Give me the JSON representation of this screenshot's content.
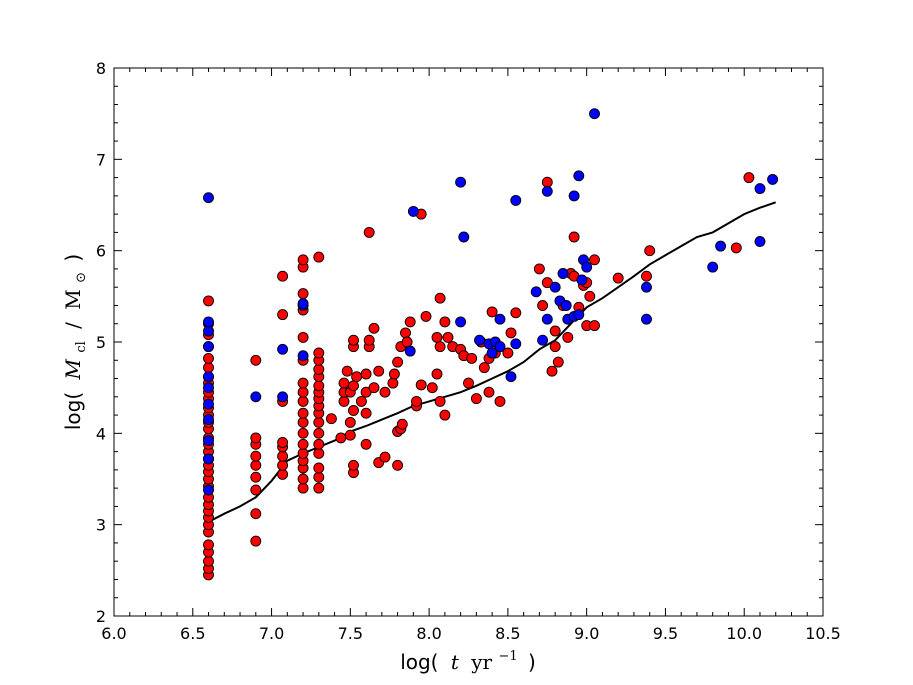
{
  "chart_data": {
    "type": "scatter",
    "title": "",
    "xlabel": {
      "prefix": "log(",
      "var": "t",
      "unit": "yr",
      "exp": "−1",
      "suffix": ")"
    },
    "ylabel": {
      "prefix": "log(",
      "var": "M",
      "sub": "cl",
      "sep": "/",
      "unit": "M",
      "unit_sub": "⊙",
      "suffix": ")"
    },
    "xlim": [
      6.0,
      10.5
    ],
    "ylim": [
      2,
      8
    ],
    "x_ticks": [
      "6.0",
      "6.5",
      "7.0",
      "7.5",
      "8.0",
      "8.5",
      "9.0",
      "9.5",
      "10.0",
      "10.5"
    ],
    "y_ticks": [
      "2",
      "3",
      "4",
      "5",
      "6",
      "7",
      "8"
    ],
    "grid": false,
    "colors": {
      "red": "#ff0000",
      "blue": "#0000ff",
      "line": "#000000"
    },
    "series": [
      {
        "color": "red",
        "points": [
          [
            6.6,
            2.45
          ],
          [
            6.6,
            2.52
          ],
          [
            6.6,
            2.6
          ],
          [
            6.6,
            2.7
          ],
          [
            6.6,
            2.78
          ],
          [
            6.6,
            2.92
          ],
          [
            6.6,
            3.0
          ],
          [
            6.6,
            3.08
          ],
          [
            6.6,
            3.15
          ],
          [
            6.6,
            3.22
          ],
          [
            6.6,
            3.3
          ],
          [
            6.6,
            3.42
          ],
          [
            6.6,
            3.5
          ],
          [
            6.6,
            3.58
          ],
          [
            6.6,
            3.65
          ],
          [
            6.6,
            3.72
          ],
          [
            6.6,
            3.8
          ],
          [
            6.6,
            3.88
          ],
          [
            6.6,
            3.95
          ],
          [
            6.6,
            4.05
          ],
          [
            6.6,
            4.12
          ],
          [
            6.6,
            4.2
          ],
          [
            6.6,
            4.28
          ],
          [
            6.6,
            4.38
          ],
          [
            6.6,
            4.45
          ],
          [
            6.6,
            4.55
          ],
          [
            6.6,
            4.62
          ],
          [
            6.6,
            4.72
          ],
          [
            6.6,
            4.82
          ],
          [
            6.6,
            4.95
          ],
          [
            6.6,
            5.08
          ],
          [
            6.6,
            5.2
          ],
          [
            6.6,
            5.45
          ],
          [
            6.9,
            2.82
          ],
          [
            6.9,
            3.12
          ],
          [
            6.9,
            3.38
          ],
          [
            6.9,
            3.52
          ],
          [
            6.9,
            3.65
          ],
          [
            6.9,
            3.75
          ],
          [
            6.9,
            3.88
          ],
          [
            6.9,
            3.95
          ],
          [
            6.9,
            4.8
          ],
          [
            7.07,
            3.55
          ],
          [
            7.07,
            3.65
          ],
          [
            7.07,
            3.75
          ],
          [
            7.07,
            3.85
          ],
          [
            7.07,
            3.9
          ],
          [
            7.07,
            4.35
          ],
          [
            7.07,
            5.3
          ],
          [
            7.07,
            5.72
          ],
          [
            7.2,
            3.4
          ],
          [
            7.2,
            3.5
          ],
          [
            7.2,
            3.62
          ],
          [
            7.2,
            3.7
          ],
          [
            7.2,
            3.78
          ],
          [
            7.2,
            3.88
          ],
          [
            7.2,
            4.0
          ],
          [
            7.2,
            4.12
          ],
          [
            7.2,
            4.22
          ],
          [
            7.2,
            4.35
          ],
          [
            7.2,
            4.45
          ],
          [
            7.2,
            4.55
          ],
          [
            7.2,
            4.8
          ],
          [
            7.2,
            5.05
          ],
          [
            7.2,
            5.35
          ],
          [
            7.2,
            5.53
          ],
          [
            7.2,
            5.82
          ],
          [
            7.2,
            5.9
          ],
          [
            7.3,
            3.4
          ],
          [
            7.3,
            3.52
          ],
          [
            7.3,
            3.62
          ],
          [
            7.3,
            3.78
          ],
          [
            7.3,
            3.88
          ],
          [
            7.3,
            4.0
          ],
          [
            7.3,
            4.12
          ],
          [
            7.3,
            4.22
          ],
          [
            7.3,
            4.3
          ],
          [
            7.3,
            4.38
          ],
          [
            7.3,
            4.45
          ],
          [
            7.3,
            4.52
          ],
          [
            7.3,
            4.62
          ],
          [
            7.3,
            4.7
          ],
          [
            7.3,
            4.8
          ],
          [
            7.3,
            4.88
          ],
          [
            7.3,
            5.93
          ],
          [
            7.38,
            4.16
          ],
          [
            7.44,
            3.95
          ],
          [
            7.46,
            4.35
          ],
          [
            7.46,
            4.45
          ],
          [
            7.46,
            4.55
          ],
          [
            7.48,
            4.68
          ],
          [
            7.52,
            3.57
          ],
          [
            7.52,
            3.65
          ],
          [
            7.5,
            3.98
          ],
          [
            7.5,
            4.12
          ],
          [
            7.52,
            4.25
          ],
          [
            7.5,
            4.45
          ],
          [
            7.52,
            4.52
          ],
          [
            7.54,
            4.62
          ],
          [
            7.52,
            4.95
          ],
          [
            7.52,
            5.02
          ],
          [
            7.57,
            4.35
          ],
          [
            7.6,
            4.22
          ],
          [
            7.6,
            4.45
          ],
          [
            7.6,
            4.65
          ],
          [
            7.62,
            4.95
          ],
          [
            7.62,
            5.02
          ],
          [
            7.62,
            6.2
          ],
          [
            7.6,
            3.88
          ],
          [
            7.65,
            4.5
          ],
          [
            7.65,
            5.15
          ],
          [
            7.68,
            4.68
          ],
          [
            7.68,
            3.68
          ],
          [
            7.72,
            3.74
          ],
          [
            7.72,
            4.45
          ],
          [
            7.77,
            4.55
          ],
          [
            7.78,
            4.65
          ],
          [
            7.8,
            4.02
          ],
          [
            7.8,
            3.65
          ],
          [
            7.82,
            4.05
          ],
          [
            7.83,
            4.1
          ],
          [
            7.8,
            4.78
          ],
          [
            7.82,
            4.95
          ],
          [
            7.85,
            5.1
          ],
          [
            7.86,
            5.0
          ],
          [
            7.88,
            5.22
          ],
          [
            7.92,
            4.3
          ],
          [
            7.92,
            4.35
          ],
          [
            7.95,
            6.4
          ],
          [
            7.95,
            4.53
          ],
          [
            7.98,
            5.28
          ],
          [
            8.02,
            4.5
          ],
          [
            8.05,
            4.65
          ],
          [
            8.05,
            5.05
          ],
          [
            8.07,
            4.95
          ],
          [
            8.07,
            5.48
          ],
          [
            8.07,
            4.35
          ],
          [
            8.1,
            4.2
          ],
          [
            8.1,
            5.22
          ],
          [
            8.12,
            5.05
          ],
          [
            8.15,
            4.95
          ],
          [
            8.2,
            4.92
          ],
          [
            8.22,
            4.85
          ],
          [
            8.25,
            4.55
          ],
          [
            8.27,
            4.82
          ],
          [
            8.3,
            4.38
          ],
          [
            8.33,
            5.0
          ],
          [
            8.35,
            4.72
          ],
          [
            8.38,
            4.45
          ],
          [
            8.38,
            4.82
          ],
          [
            8.4,
            5.33
          ],
          [
            8.42,
            4.88
          ],
          [
            8.45,
            4.35
          ],
          [
            8.5,
            4.88
          ],
          [
            8.52,
            5.1
          ],
          [
            8.55,
            5.32
          ],
          [
            8.7,
            5.8
          ],
          [
            8.72,
            5.4
          ],
          [
            8.75,
            6.75
          ],
          [
            8.75,
            5.65
          ],
          [
            8.78,
            4.68
          ],
          [
            8.8,
            4.95
          ],
          [
            8.8,
            5.12
          ],
          [
            8.82,
            4.78
          ],
          [
            8.85,
            5.4
          ],
          [
            8.88,
            5.05
          ],
          [
            8.9,
            5.75
          ],
          [
            8.92,
            6.15
          ],
          [
            8.92,
            5.72
          ],
          [
            8.95,
            5.38
          ],
          [
            8.98,
            5.62
          ],
          [
            9.0,
            5.65
          ],
          [
            9.0,
            5.18
          ],
          [
            9.02,
            5.5
          ],
          [
            9.05,
            5.9
          ],
          [
            9.05,
            5.18
          ],
          [
            9.2,
            5.7
          ],
          [
            9.38,
            5.72
          ],
          [
            9.4,
            6.0
          ],
          [
            9.95,
            6.03
          ],
          [
            10.03,
            6.8
          ]
        ]
      },
      {
        "color": "blue",
        "points": [
          [
            6.6,
            3.38
          ],
          [
            6.6,
            3.72
          ],
          [
            6.6,
            3.92
          ],
          [
            6.6,
            4.15
          ],
          [
            6.6,
            4.32
          ],
          [
            6.6,
            4.5
          ],
          [
            6.6,
            4.62
          ],
          [
            6.6,
            4.95
          ],
          [
            6.6,
            5.12
          ],
          [
            6.6,
            5.22
          ],
          [
            6.6,
            6.58
          ],
          [
            6.9,
            4.4
          ],
          [
            7.07,
            4.92
          ],
          [
            7.07,
            4.4
          ],
          [
            7.2,
            4.85
          ],
          [
            7.2,
            5.4
          ],
          [
            7.2,
            5.42
          ],
          [
            7.88,
            4.9
          ],
          [
            7.9,
            6.43
          ],
          [
            8.2,
            6.75
          ],
          [
            8.22,
            6.15
          ],
          [
            8.2,
            5.22
          ],
          [
            8.32,
            5.02
          ],
          [
            8.38,
            4.98
          ],
          [
            8.4,
            4.88
          ],
          [
            8.42,
            5.0
          ],
          [
            8.45,
            4.95
          ],
          [
            8.45,
            5.25
          ],
          [
            8.52,
            4.62
          ],
          [
            8.55,
            4.98
          ],
          [
            8.55,
            6.55
          ],
          [
            8.68,
            5.55
          ],
          [
            8.72,
            5.02
          ],
          [
            8.75,
            5.25
          ],
          [
            8.75,
            6.65
          ],
          [
            8.8,
            5.6
          ],
          [
            8.83,
            5.45
          ],
          [
            8.85,
            5.75
          ],
          [
            8.87,
            5.4
          ],
          [
            8.88,
            5.25
          ],
          [
            8.92,
            5.28
          ],
          [
            8.92,
            6.6
          ],
          [
            8.95,
            5.3
          ],
          [
            8.97,
            5.68
          ],
          [
            8.95,
            6.82
          ],
          [
            8.98,
            5.9
          ],
          [
            9.0,
            5.82
          ],
          [
            9.05,
            7.5
          ],
          [
            9.38,
            5.6
          ],
          [
            9.38,
            5.25
          ],
          [
            9.8,
            5.82
          ],
          [
            9.85,
            6.05
          ],
          [
            10.1,
            6.1
          ],
          [
            10.1,
            6.68
          ],
          [
            10.18,
            6.78
          ]
        ]
      }
    ],
    "line": {
      "color": "line",
      "x": [
        6.6,
        6.7,
        6.8,
        6.9,
        7.0,
        7.1,
        7.2,
        7.3,
        7.4,
        7.5,
        7.6,
        7.7,
        7.8,
        7.9,
        8.0,
        8.1,
        8.2,
        8.3,
        8.4,
        8.5,
        8.6,
        8.7,
        8.8,
        8.9,
        9.0,
        9.1,
        9.2,
        9.3,
        9.4,
        9.5,
        9.6,
        9.7,
        9.8,
        9.9,
        10.0,
        10.1,
        10.2
      ],
      "y": [
        3.03,
        3.12,
        3.2,
        3.3,
        3.48,
        3.7,
        3.78,
        3.85,
        3.92,
        4.02,
        4.08,
        4.15,
        4.22,
        4.3,
        4.35,
        4.4,
        4.45,
        4.52,
        4.6,
        4.68,
        4.78,
        4.92,
        5.02,
        5.2,
        5.38,
        5.48,
        5.6,
        5.72,
        5.85,
        5.95,
        6.05,
        6.15,
        6.2,
        6.3,
        6.4,
        6.47,
        6.53
      ]
    }
  }
}
